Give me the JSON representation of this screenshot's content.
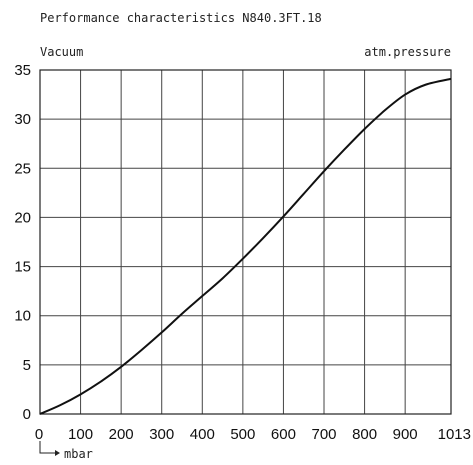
{
  "chart_data": {
    "type": "line",
    "title": "Performance characteristics N840.3FT.18",
    "left_label": "Vacuum",
    "right_label": "atm.pressure",
    "xlabel": "mbar",
    "xlim": [
      0,
      1013
    ],
    "ylim": [
      0,
      35
    ],
    "x_ticks": [
      0,
      100,
      200,
      300,
      400,
      500,
      600,
      700,
      800,
      900,
      1013
    ],
    "x_tick_labels": [
      "0",
      "100",
      "200",
      "300",
      "400",
      "500",
      "600",
      "700",
      "800",
      "900",
      "1013"
    ],
    "y_ticks": [
      0,
      5,
      10,
      15,
      20,
      25,
      30,
      35
    ],
    "y_tick_labels": [
      "0",
      "5",
      "10",
      "15",
      "20",
      "25",
      "30",
      "35"
    ],
    "grid": true,
    "series": [
      {
        "color": "#111111",
        "x": [
          0,
          50,
          100,
          150,
          200,
          250,
          300,
          350,
          400,
          450,
          500,
          550,
          600,
          650,
          700,
          750,
          800,
          850,
          900,
          950,
          1013
        ],
        "y": [
          0,
          0.9,
          2.0,
          3.3,
          4.8,
          6.5,
          8.3,
          10.2,
          12.0,
          13.8,
          15.8,
          17.9,
          20.1,
          22.4,
          24.7,
          26.9,
          29.0,
          30.9,
          32.5,
          33.5,
          34.1
        ]
      }
    ]
  }
}
